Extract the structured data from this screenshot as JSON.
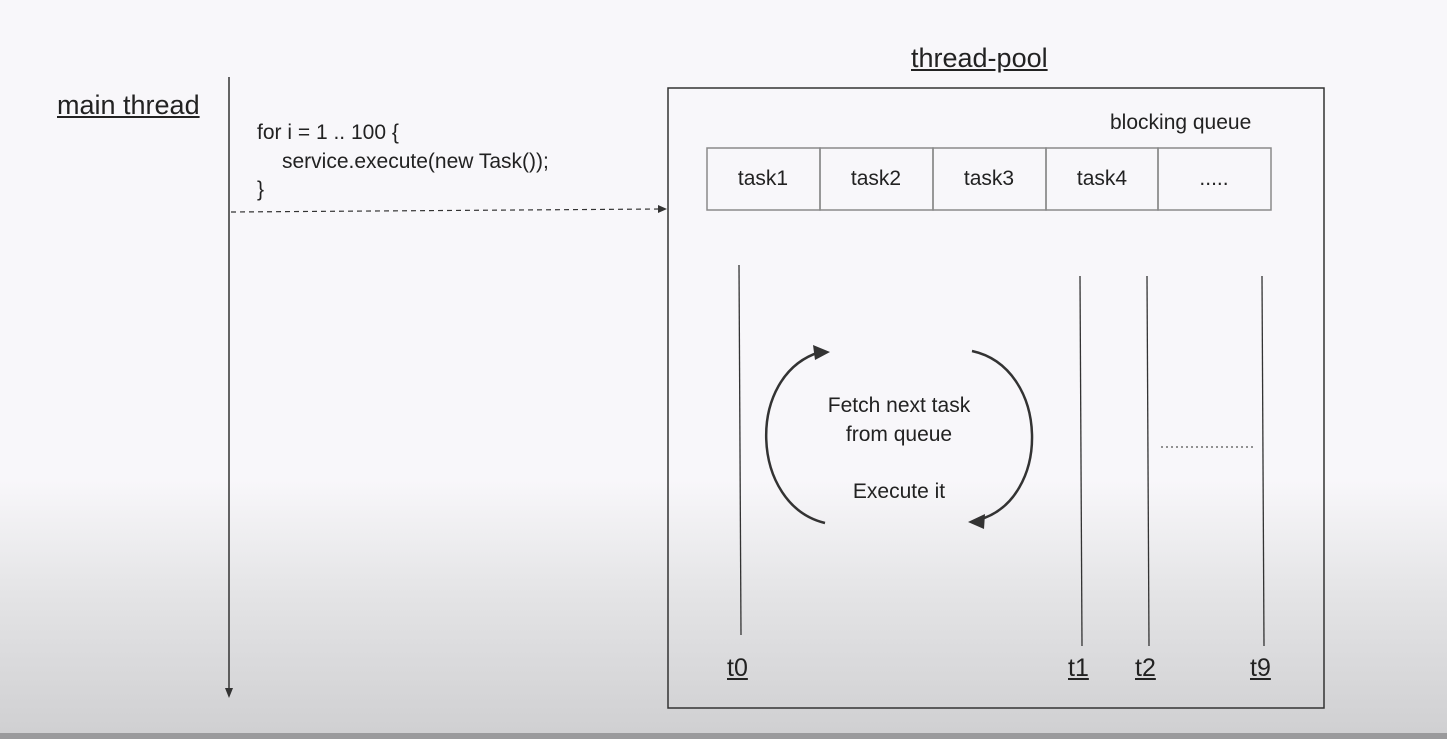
{
  "titles": {
    "main_thread": "main thread",
    "thread_pool": "thread-pool",
    "blocking_queue": "blocking queue"
  },
  "code": {
    "line1": "for i = 1 .. 100 {",
    "line2": "service.execute(new Task());",
    "line3": "}"
  },
  "queue": {
    "cells": [
      "task1",
      "task2",
      "task3",
      "task4",
      "....."
    ]
  },
  "cycle": {
    "line1": "Fetch next task",
    "line2": "from queue",
    "line3": "Execute it"
  },
  "threads": {
    "t0": "t0",
    "t1": "t1",
    "t2": "t2",
    "t9": "t9"
  },
  "colors": {
    "stroke": "#333333",
    "text": "#222222"
  }
}
